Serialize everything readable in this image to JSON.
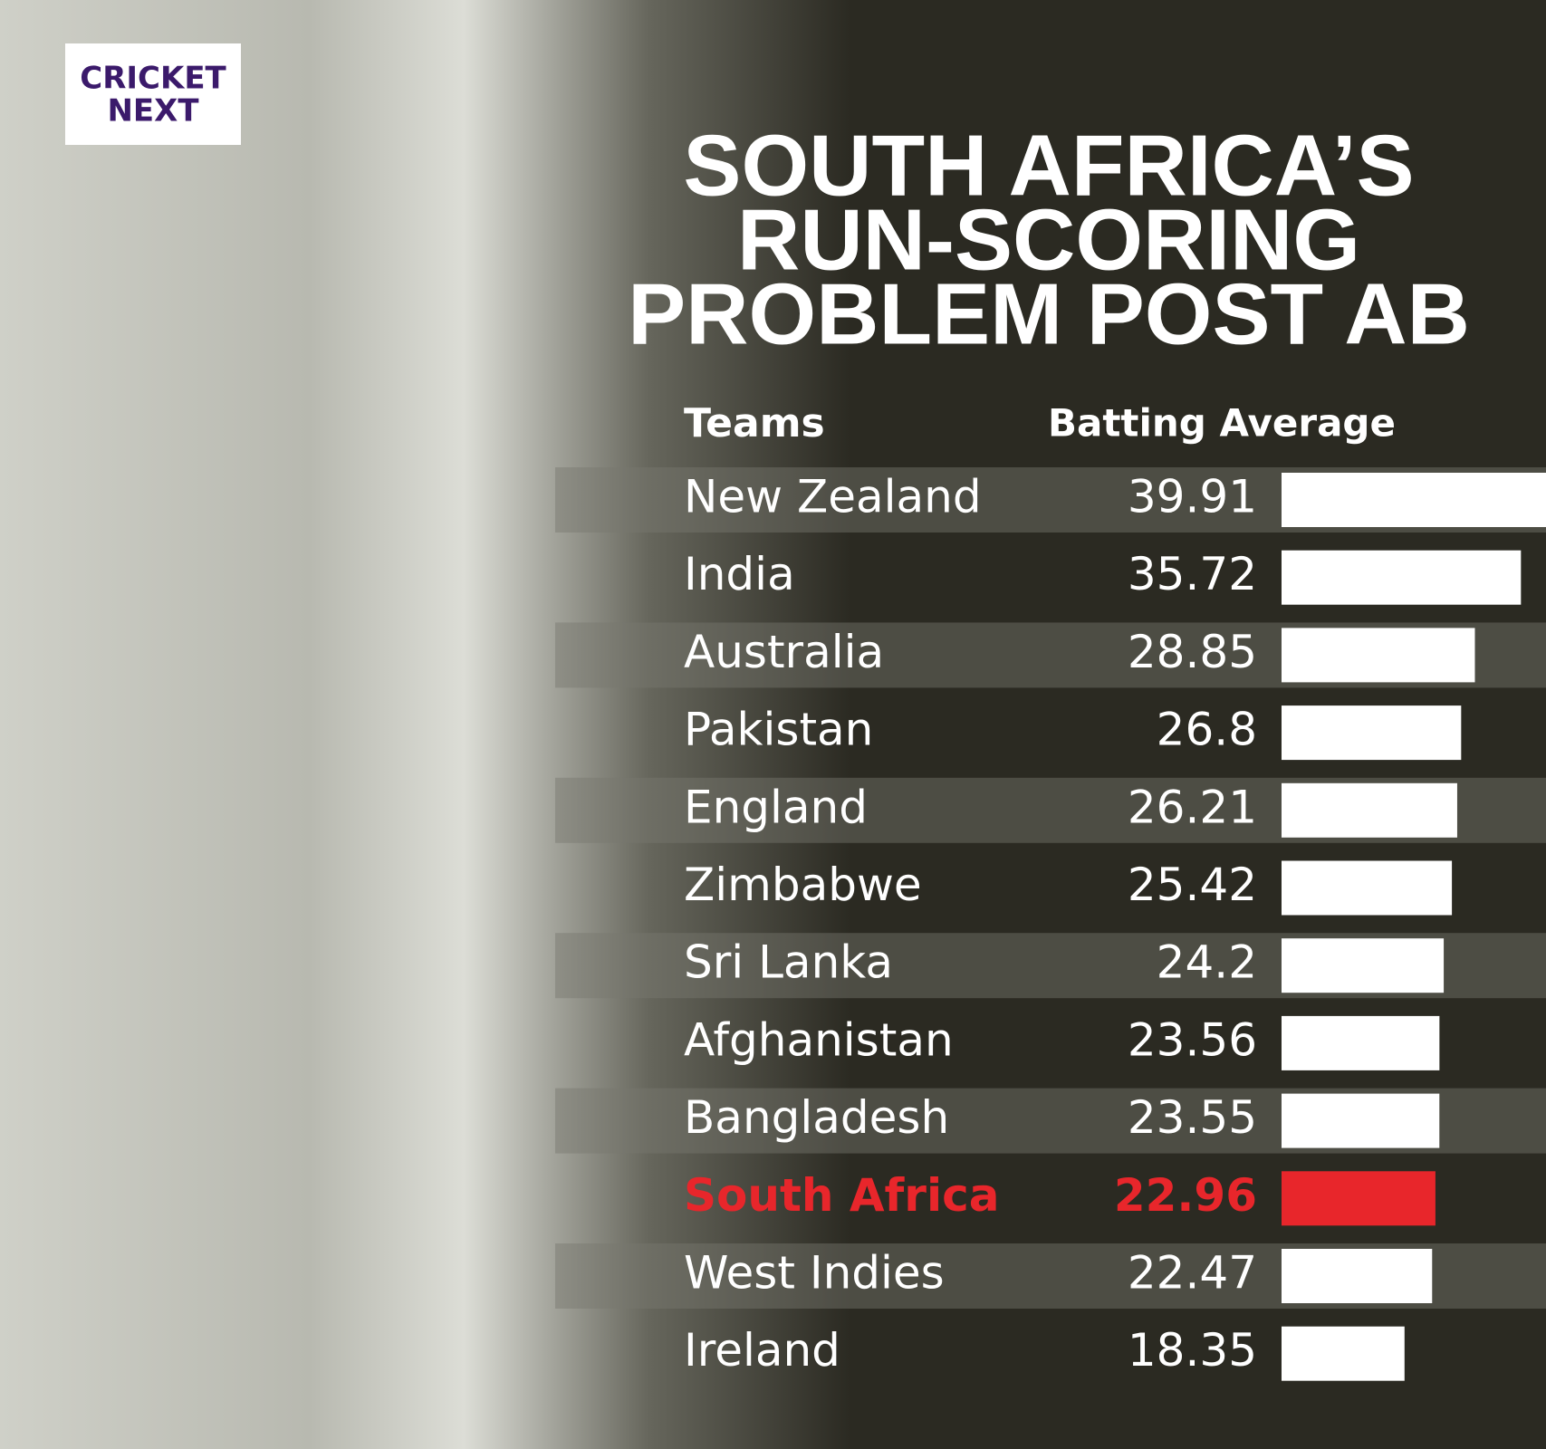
{
  "logo": {
    "line1": "CRICKET",
    "line2": "NEXT"
  },
  "chart_data": {
    "type": "bar",
    "title_lines": [
      "SOUTH AFRICA’S",
      "RUN-SCORING",
      "PROBLEM POST AB"
    ],
    "category_header": "Teams",
    "value_header": "Batting Average",
    "categories": [
      "New Zealand",
      "India",
      "Australia",
      "Pakistan",
      "England",
      "Zimbabwe",
      "Sri Lanka",
      "Afghanistan",
      "Bangladesh",
      "South Africa",
      "West Indies",
      "Ireland"
    ],
    "values": [
      39.91,
      35.72,
      28.85,
      26.8,
      26.21,
      25.42,
      24.2,
      23.56,
      23.55,
      22.96,
      22.47,
      18.35
    ],
    "color": "#ffffff",
    "highlight": "South Africa",
    "highlight_color": "#e8262b"
  }
}
